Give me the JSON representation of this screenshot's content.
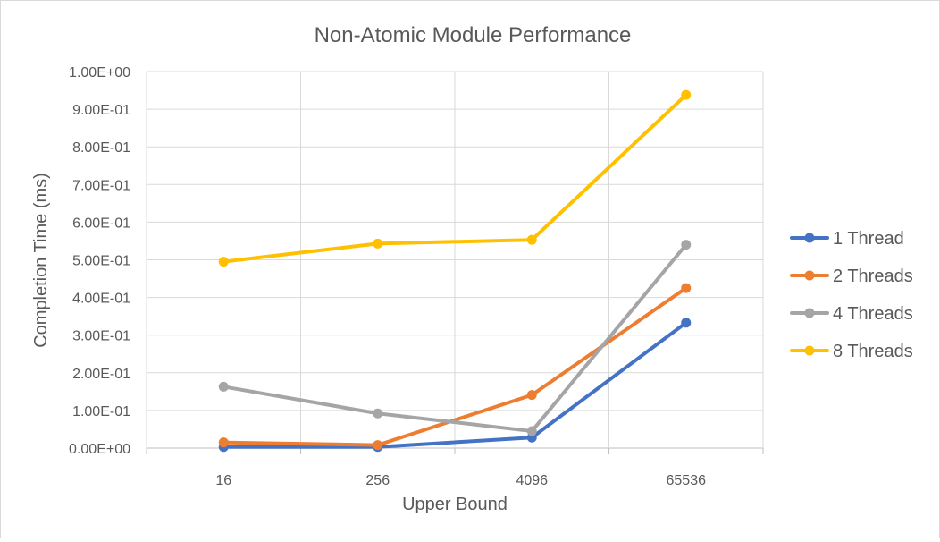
{
  "chart_data": {
    "type": "line",
    "title": "Non-Atomic Module Performance",
    "xlabel": "Upper Bound",
    "ylabel": "Completion Time (ms)",
    "categories": [
      "16",
      "256",
      "4096",
      "65536"
    ],
    "ylim": [
      0,
      1
    ],
    "yticks": [
      {
        "value": 0.0,
        "label": "0.00E+00"
      },
      {
        "value": 0.1,
        "label": "1.00E-01"
      },
      {
        "value": 0.2,
        "label": "2.00E-01"
      },
      {
        "value": 0.3,
        "label": "3.00E-01"
      },
      {
        "value": 0.4,
        "label": "4.00E-01"
      },
      {
        "value": 0.5,
        "label": "5.00E-01"
      },
      {
        "value": 0.6,
        "label": "6.00E-01"
      },
      {
        "value": 0.7,
        "label": "7.00E-01"
      },
      {
        "value": 0.8,
        "label": "8.00E-01"
      },
      {
        "value": 0.9,
        "label": "9.00E-01"
      },
      {
        "value": 1.0,
        "label": "1.00E+00"
      }
    ],
    "grid": true,
    "legend_position": "right",
    "series": [
      {
        "name": "1 Thread",
        "color": "#4472C4",
        "values": [
          0.003,
          0.003,
          0.028,
          0.333
        ]
      },
      {
        "name": "2 Threads",
        "color": "#ED7D31",
        "values": [
          0.015,
          0.008,
          0.141,
          0.425
        ]
      },
      {
        "name": "4 Threads",
        "color": "#A5A5A5",
        "values": [
          0.163,
          0.092,
          0.045,
          0.54
        ]
      },
      {
        "name": "8 Threads",
        "color": "#FFC000",
        "values": [
          0.495,
          0.543,
          0.553,
          0.938
        ]
      }
    ]
  }
}
